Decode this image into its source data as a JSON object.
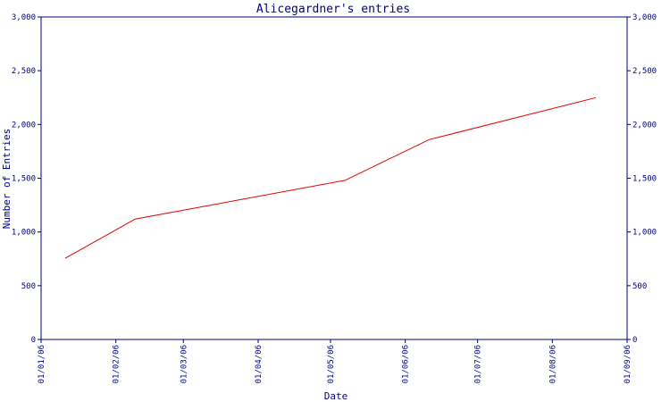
{
  "chart_data": {
    "type": "line",
    "title": "Alicegardner's entries",
    "xlabel": "Date",
    "ylabel": "Number of Entries",
    "x_ticks": [
      "01/01/06",
      "01/02/06",
      "01/03/06",
      "01/04/06",
      "01/05/06",
      "01/06/06",
      "01/07/06",
      "01/08/06",
      "01/09/06"
    ],
    "ylim": [
      0,
      3000
    ],
    "y_ticks": [
      0,
      500,
      1000,
      1500,
      2000,
      2500,
      3000
    ],
    "y_tick_labels": [
      "0",
      "500",
      "1,000",
      "1,500",
      "2,000",
      "2,500",
      "3,000"
    ],
    "grid": false,
    "series": [
      {
        "color": "#e00000",
        "points": [
          {
            "date": "2006-01-11",
            "value": 755
          },
          {
            "date": "2006-02-09",
            "value": 1120
          },
          {
            "date": "2006-05-07",
            "value": 1480
          },
          {
            "date": "2006-06-11",
            "value": 1860
          },
          {
            "date": "2006-08-19",
            "value": 2250
          }
        ]
      }
    ]
  }
}
